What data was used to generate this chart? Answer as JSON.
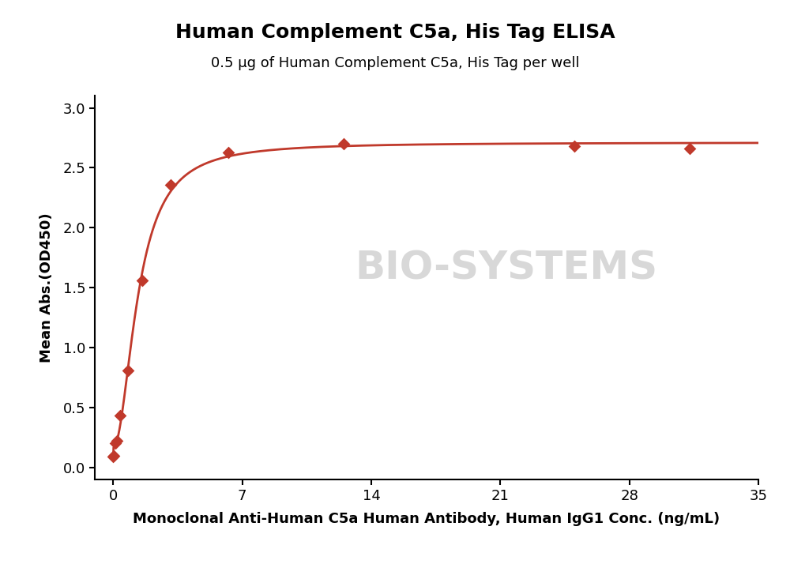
{
  "title": "Human Complement C5a, His Tag ELISA",
  "subtitle": "0.5 μg of Human Complement C5a, His Tag per well",
  "xlabel": "Monoclonal Anti-Human C5a Human Antibody, Human IgG1 Conc. (ng/mL)",
  "ylabel": "Mean Abs.(OD450)",
  "x_data": [
    0.0,
    0.049,
    0.098,
    0.195,
    0.39,
    0.781,
    1.563,
    3.125,
    6.25,
    12.5,
    25.0,
    31.25
  ],
  "y_data": [
    0.09,
    0.1,
    0.2,
    0.22,
    0.43,
    0.81,
    1.56,
    2.36,
    2.63,
    2.7,
    2.68,
    2.66
  ],
  "xlim": [
    -1,
    35
  ],
  "ylim": [
    -0.1,
    3.1
  ],
  "xticks": [
    0,
    7,
    14,
    21,
    28,
    35
  ],
  "yticks": [
    0.0,
    0.5,
    1.0,
    1.5,
    2.0,
    2.5,
    3.0
  ],
  "line_color": "#c0392b",
  "marker_color": "#c0392b",
  "marker": "D",
  "marker_size": 8,
  "line_width": 2.0,
  "title_fontsize": 18,
  "subtitle_fontsize": 13,
  "label_fontsize": 13,
  "tick_fontsize": 13,
  "background_color": "#ffffff",
  "watermark_text": "BIO-SYSTEMS",
  "watermark_color": "#d8d8d8"
}
